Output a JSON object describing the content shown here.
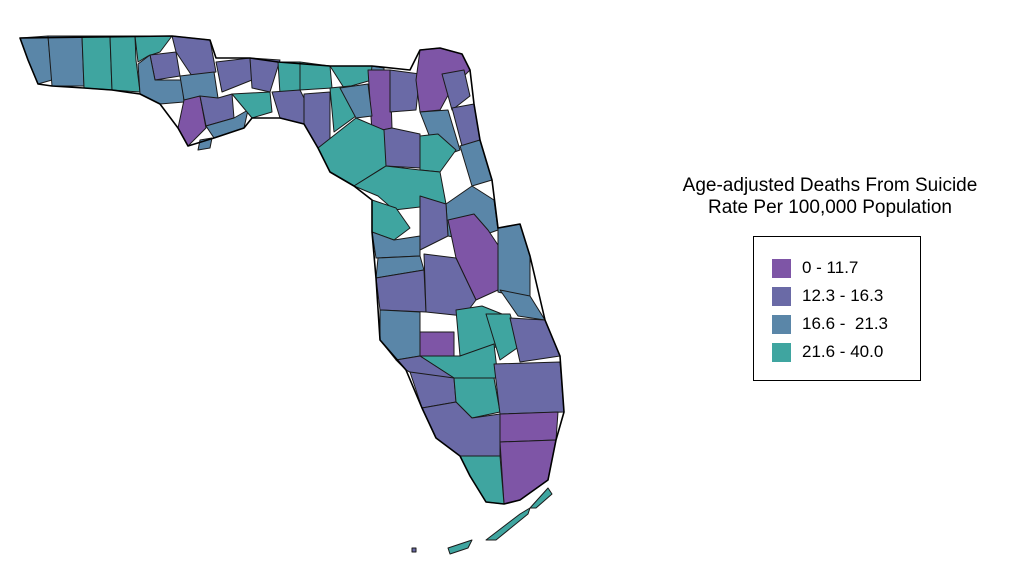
{
  "legend": {
    "title_line1": "Age-adjusted Deaths From Suicide",
    "title_line2": "Rate Per 100,000 Population",
    "items": [
      {
        "label": "0 - 11.7",
        "color": "#7e55a6"
      },
      {
        "label": "12.3 - 16.3",
        "color": "#6a6aa6"
      },
      {
        "label": "16.6 -  21.3",
        "color": "#5a86a8"
      },
      {
        "label": "21.6 - 40.0",
        "color": "#3fa5a0"
      }
    ]
  },
  "map": {
    "region": "Florida counties",
    "class_colors": [
      "#7e55a6",
      "#6a6aa6",
      "#5a86a8",
      "#3fa5a0"
    ]
  }
}
